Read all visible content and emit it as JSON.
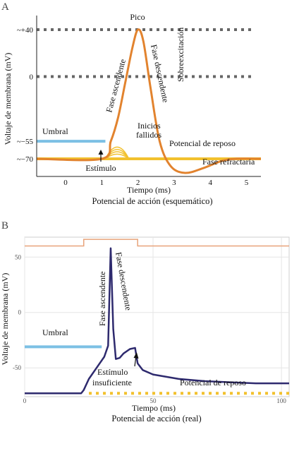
{
  "panels": {
    "a": {
      "letter": "A",
      "caption": "Potencial de acción (esquemático)"
    },
    "b": {
      "letter": "B",
      "caption": "Potencial de acción (real)"
    }
  },
  "chart_data": [
    {
      "type": "line",
      "xlabel": "Tiempo (ms)",
      "ylabel": "Voltaje de membrana (mV)",
      "xlim": [
        -0.8,
        5.4
      ],
      "ylim": [
        -85,
        52
      ],
      "x_ticks": [
        "0",
        "1",
        "2",
        "3",
        "4",
        "5"
      ],
      "y_ticks": [
        {
          "label": "~+40",
          "value": 40
        },
        {
          "label": "0",
          "value": 0
        },
        {
          "label": "~−55",
          "value": -55
        },
        {
          "label": "~−70",
          "value": -70
        }
      ],
      "reference_lines": [
        {
          "value": 40,
          "style": "dotted",
          "color": "#666666"
        },
        {
          "value": 0,
          "style": "dotted",
          "color": "#666666"
        },
        {
          "value": -55,
          "label": "Umbral",
          "color": "#7cc0e4",
          "x_end": 1.1
        },
        {
          "value": -70,
          "label": "Potencial de reposo",
          "color": "#f2c12e"
        }
      ],
      "series": [
        {
          "color": "#e2832e",
          "x": [
            -0.8,
            1.0,
            1.25,
            1.45,
            1.65,
            1.85,
            2.0,
            2.15,
            2.35,
            2.6,
            2.9,
            3.3,
            3.8,
            4.3,
            4.7,
            5.4
          ],
          "y": [
            -70,
            -70,
            -55,
            -35,
            -5,
            25,
            40,
            30,
            -10,
            -55,
            -76,
            -82,
            -78,
            -72,
            -70,
            -70
          ]
        }
      ],
      "failed_initiations": {
        "color": "#f2c12e",
        "x_range": [
          1.1,
          1.75
        ],
        "peaks": [
          -60,
          -62,
          -64,
          -66
        ]
      },
      "annotations": {
        "peak": "Pico",
        "rising_phase": "Fase ascendente",
        "falling_phase": "Fase descendente",
        "overshoot": "Sobreexcitación",
        "failed_line1": "Inicios",
        "failed_line2": "fallidos",
        "stimulus": "Estímulo",
        "refractory": "Fase refractaria"
      }
    },
    {
      "type": "line",
      "xlabel": "Tiempo (ms)",
      "ylabel": "Voltaje de membrana (mV)",
      "xlim": [
        0,
        103
      ],
      "ylim": [
        -76,
        68
      ],
      "x_ticks": [
        0,
        50,
        100
      ],
      "y_ticks": [
        50,
        0,
        -50
      ],
      "grid": true,
      "stimulus_trace": {
        "color": "#e8a37a",
        "x": [
          0,
          23,
          23,
          44,
          44,
          103
        ],
        "y": [
          60,
          60,
          66,
          66,
          60,
          60
        ]
      },
      "series": [
        {
          "color": "#2e2a6e",
          "x": [
            0,
            22,
            23,
            25,
            28,
            31,
            32.5,
            33.5,
            34.5,
            35.5,
            37,
            38.5,
            41,
            43,
            44,
            46,
            50,
            60,
            70,
            80,
            90,
            103
          ],
          "y": [
            -73,
            -73,
            -70,
            -60,
            -50,
            -40,
            -30,
            58,
            -15,
            -42,
            -41,
            -37,
            -33,
            -32,
            -46,
            -52,
            -56,
            -60,
            -62,
            -63,
            -64,
            -64
          ]
        }
      ],
      "reference_lines": [
        {
          "value": -31,
          "label": "Umbral",
          "color": "#7cc0e4",
          "x_end": 30
        },
        {
          "value": -73,
          "label": "Potencial de reposo",
          "color": "#f2c12e",
          "style": "dashed"
        }
      ],
      "annotations": {
        "rising_phase": "Fase ascendente",
        "falling_phase": "Fase descendente",
        "stimulus_line1": "Estímulo",
        "stimulus_line2": "insuficiente"
      }
    }
  ]
}
